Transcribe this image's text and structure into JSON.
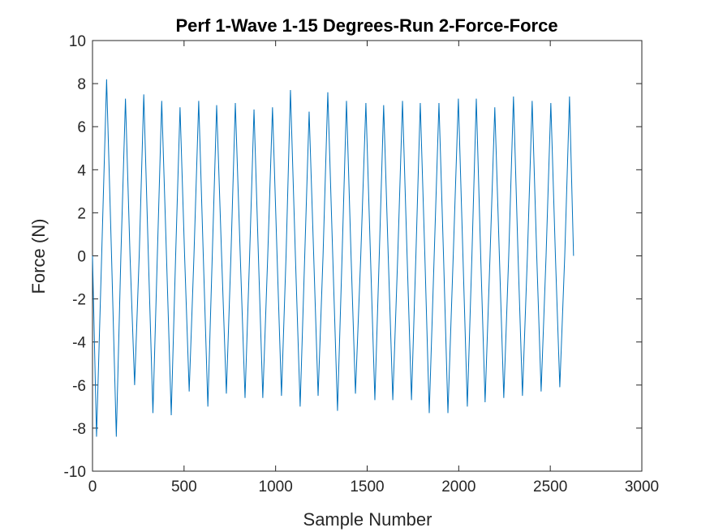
{
  "chart_data": {
    "type": "line",
    "title": "Perf 1-Wave 1-15 Degrees-Run 2-Force-Force",
    "x_label": "Sample Number",
    "y_label": "Force (N)",
    "xlim": [
      0,
      3000
    ],
    "xticks": [
      0,
      500,
      1000,
      1500,
      2000,
      2500,
      3000
    ],
    "ylim": [
      -10,
      10
    ],
    "yticks": [
      -10,
      -8,
      -6,
      -4,
      -2,
      0,
      2,
      4,
      6,
      8,
      10
    ],
    "grid": false,
    "series": [
      {
        "color": "#0072bd",
        "x": [
          0,
          22,
          50,
          77,
          104,
          130,
          155,
          180,
          205,
          230,
          255,
          280,
          305,
          330,
          354,
          378,
          404,
          430,
          454,
          478,
          503,
          528,
          554,
          580,
          605,
          630,
          654,
          678,
          705,
          731,
          756,
          780,
          807,
          833,
          858,
          882,
          906,
          930,
          957,
          983,
          1008,
          1032,
          1057,
          1081,
          1108,
          1134,
          1159,
          1183,
          1208,
          1232,
          1259,
          1285,
          1312,
          1338,
          1363,
          1387,
          1412,
          1436,
          1465,
          1493,
          1518,
          1542,
          1566,
          1590,
          1615,
          1640,
          1667,
          1693,
          1718,
          1742,
          1766,
          1790,
          1815,
          1839,
          1866,
          1892,
          1917,
          1941,
          1970,
          1998,
          2023,
          2047,
          2072,
          2096,
          2120,
          2144,
          2171,
          2197,
          2222,
          2246,
          2273,
          2299,
          2324,
          2348,
          2375,
          2401,
          2426,
          2450,
          2477,
          2503,
          2528,
          2552,
          2579,
          2605,
          2627
        ],
        "values": [
          0,
          -8.4,
          0,
          8.2,
          0,
          -8.4,
          0,
          7.3,
          0,
          -6,
          0,
          7.5,
          0,
          -7.3,
          0,
          7.2,
          0,
          -7.4,
          0,
          6.9,
          0,
          -6.3,
          0,
          7.2,
          0,
          -7,
          0,
          7,
          0,
          -6.4,
          0,
          7.1,
          0,
          -6.6,
          0,
          6.8,
          0,
          -6.6,
          0,
          6.9,
          0,
          -6.5,
          0,
          7.7,
          0,
          -7,
          0,
          6.7,
          0,
          -6.5,
          0,
          7.6,
          0,
          -7.2,
          0,
          7.2,
          0,
          -6.4,
          0,
          7.1,
          0,
          -6.7,
          0,
          7,
          0,
          -6.7,
          0,
          7.2,
          0,
          -6.7,
          0,
          7.1,
          0,
          -7.3,
          0,
          7.1,
          0,
          -7.3,
          0,
          7.3,
          0,
          -7,
          0,
          7.3,
          0,
          -6.8,
          0,
          6.9,
          0,
          -6.6,
          0,
          7.4,
          0,
          -6.5,
          0,
          7.2,
          0,
          -6.3,
          0,
          7.1,
          0,
          -6.1,
          0,
          7.4,
          0
        ]
      }
    ]
  }
}
